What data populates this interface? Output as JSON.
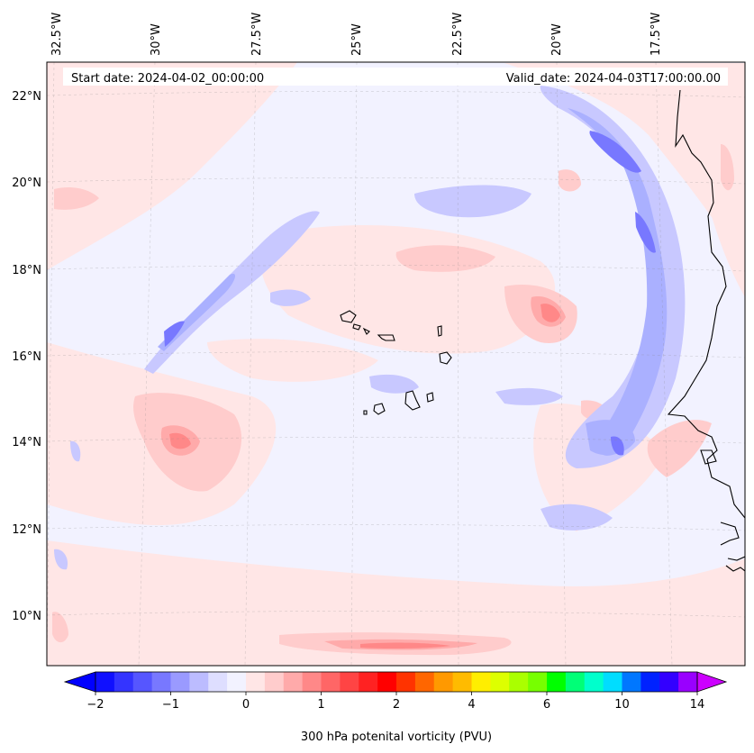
{
  "header": {
    "start_date": "Start date: 2024-04-02_00:00:00",
    "valid_date": "Valid_date: 2024-04-03T17:00:00.00"
  },
  "axes": {
    "lon_labels": [
      "32.5°W",
      "30°W",
      "27.5°W",
      "25°W",
      "22.5°W",
      "20°W",
      "17.5°W"
    ],
    "lat_labels": [
      "22°N",
      "20°N",
      "18°N",
      "16°N",
      "14°N",
      "12°N",
      "10°N"
    ]
  },
  "colorbar": {
    "label": "300 hPa potenital vorticity (PVU)",
    "ticks": [
      "−2",
      "−1",
      "0",
      "1",
      "2",
      "4",
      "6",
      "10",
      "14"
    ],
    "colors": [
      "#1010ff",
      "#3434ff",
      "#5656ff",
      "#7878ff",
      "#9a9aff",
      "#bcbcff",
      "#dedeff",
      "#f2f2ff",
      "#ffe6e6",
      "#ffcccc",
      "#ffaaaa",
      "#ff8888",
      "#ff6666",
      "#ff4444",
      "#ff2222",
      "#ff0000",
      "#ff3300",
      "#ff6600",
      "#ff9900",
      "#ffbb00",
      "#ffee00",
      "#ddff00",
      "#aaff00",
      "#77ff00",
      "#00ff00",
      "#00ff77",
      "#00ffcc",
      "#00ddff",
      "#0077ff",
      "#0022ff",
      "#3300ff",
      "#9900ff"
    ],
    "under_color": "#0000ff",
    "over_color": "#cc00ff"
  },
  "colors": {
    "background_field": "#f2f2ff",
    "neg_light": "#c8c8ff",
    "neg_mid": "#aab0ff",
    "neg_strong": "#7878ff",
    "pos_light": "#ffe6e6",
    "pos_mid": "#ffcccc",
    "pos_strong": "#ff8888",
    "coast": "#000000"
  }
}
